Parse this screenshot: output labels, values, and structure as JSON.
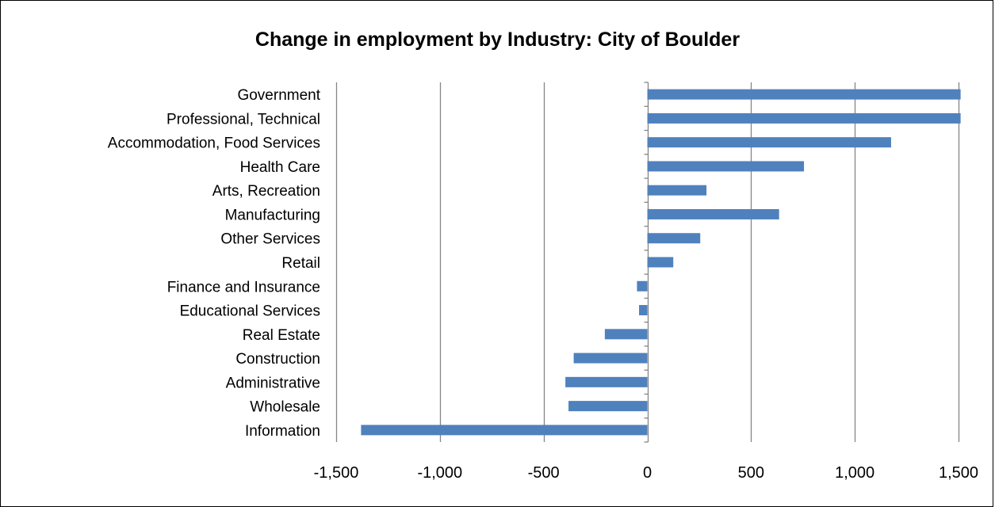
{
  "chart_data": {
    "type": "bar",
    "orientation": "horizontal",
    "title": "Change in employment by Industry: City of Boulder",
    "xlabel": "",
    "ylabel": "",
    "xlim": [
      -1500,
      1500
    ],
    "x_ticks": [
      -1500,
      -1000,
      -500,
      0,
      500,
      1000,
      1500
    ],
    "x_tick_labels": [
      "-1,500",
      "-1,000",
      "-500",
      "0",
      "500",
      "1,000",
      "1,500"
    ],
    "grid": "vertical major gridlines",
    "legend": "none",
    "bar_color": "#4F81BD",
    "categories": [
      "Government",
      "Professional, Technical",
      "Accommodation, Food Services",
      "Health Care",
      "Arts, Recreation",
      "Manufacturing",
      "Other Services",
      "Retail",
      "Finance and Insurance",
      "Educational Services",
      "Real Estate",
      "Construction",
      "Administrative",
      "Wholesale",
      "Information"
    ],
    "values": [
      1510,
      1510,
      1175,
      755,
      285,
      635,
      255,
      125,
      -50,
      -40,
      -205,
      -355,
      -395,
      -380,
      -1380
    ]
  }
}
